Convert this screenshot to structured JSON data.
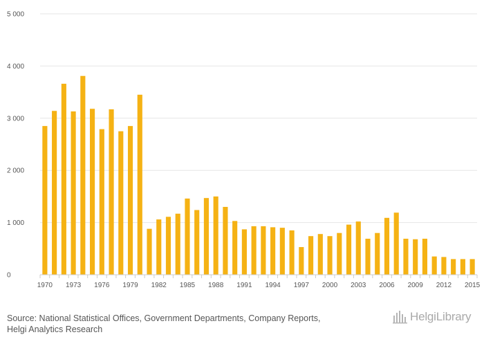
{
  "chart_data": {
    "type": "bar",
    "title": "",
    "xlabel": "",
    "ylabel": "",
    "ylim": [
      0,
      5000
    ],
    "y_ticks": [
      0,
      1000,
      2000,
      3000,
      4000,
      5000
    ],
    "y_tick_labels": [
      "0",
      "1 000",
      "2 000",
      "3 000",
      "4 000",
      "5 000"
    ],
    "x_tick_labels": [
      "1970",
      "1973",
      "1976",
      "1979",
      "1982",
      "1985",
      "1988",
      "1991",
      "1994",
      "1997",
      "2000",
      "2003",
      "2006",
      "2009",
      "2012",
      "2015"
    ],
    "categories": [
      "1970",
      "1971",
      "1972",
      "1973",
      "1974",
      "1975",
      "1976",
      "1977",
      "1978",
      "1979",
      "1980",
      "1981",
      "1982",
      "1983",
      "1984",
      "1985",
      "1986",
      "1987",
      "1988",
      "1989",
      "1990",
      "1991",
      "1992",
      "1993",
      "1994",
      "1995",
      "1996",
      "1997",
      "1998",
      "1999",
      "2000",
      "2001",
      "2002",
      "2003",
      "2004",
      "2005",
      "2006",
      "2007",
      "2008",
      "2009",
      "2010",
      "2011",
      "2012",
      "2013",
      "2014",
      "2015"
    ],
    "values": [
      2850,
      3140,
      3660,
      3130,
      3810,
      3180,
      2790,
      3170,
      2750,
      2850,
      3450,
      880,
      1060,
      1110,
      1170,
      1460,
      1240,
      1470,
      1500,
      1300,
      1030,
      870,
      930,
      930,
      910,
      900,
      850,
      530,
      740,
      780,
      740,
      800,
      960,
      1020,
      690,
      800,
      1090,
      1190,
      690,
      680,
      690,
      350,
      340,
      300,
      300,
      300
    ],
    "bar_color": "#F5B214",
    "grid": true
  },
  "footer": {
    "source_line1": "Source: National Statistical Offices, Government Departments, Company Reports,",
    "source_line2": "Helgi Analytics Research"
  },
  "logo": {
    "text": "HelgiLibrary",
    "icon": "bar-chart-stack-icon",
    "color": "#a9a9a9"
  }
}
